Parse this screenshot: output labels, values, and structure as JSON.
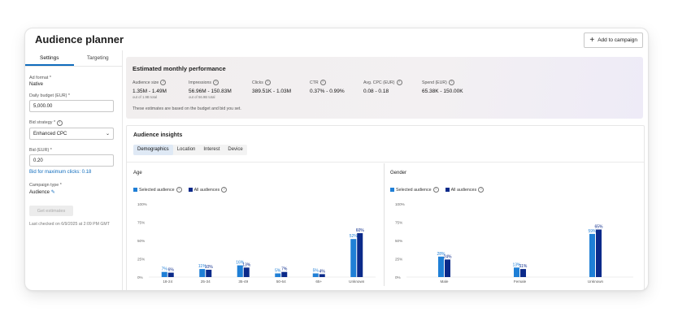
{
  "app": {
    "title": "Audience planner",
    "add_button": "Add to campaign"
  },
  "sidebar": {
    "tabs": [
      "Settings",
      "Targeting"
    ],
    "ad_format_label": "Ad format *",
    "ad_format_value": "Native",
    "daily_budget_label": "Daily budget (EUR) *",
    "daily_budget_value": "5,000.00",
    "bid_strategy_label": "Bid strategy *",
    "bid_strategy_value": "Enhanced CPC",
    "bid_label": "Bid (EUR) *",
    "bid_value": "0.20",
    "bid_link": "Bid for maximum clicks: 0.18",
    "campaign_type_label": "Campaign type *",
    "campaign_type_value": "Audience",
    "get_estimates": "Get estimates",
    "last_checked": "Last checked on 6/9/2025 at 2:09 PM GMT"
  },
  "performance": {
    "title": "Estimated monthly performance",
    "metrics": [
      {
        "label": "Audience size",
        "value": "1.35M - 1.49M",
        "sub": "out of 1.9B total"
      },
      {
        "label": "Impressions",
        "value": "56.96M - 150.83M",
        "sub": "out of 56.9B total"
      },
      {
        "label": "Clicks",
        "value": "389.51K - 1.03M",
        "sub": ""
      },
      {
        "label": "CTR",
        "value": "0.37% - 0.99%",
        "sub": ""
      },
      {
        "label": "Avg. CPC (EUR)",
        "value": "0.08 - 0.18",
        "sub": ""
      },
      {
        "label": "Spend (EUR)",
        "value": "65.38K - 150.00K",
        "sub": ""
      }
    ],
    "note": "These estimates are based on the budget and bid you set."
  },
  "insights": {
    "title": "Audience insights",
    "tabs": [
      "Demographics",
      "Location",
      "Interest",
      "Device"
    ]
  },
  "legend": {
    "selected": "Selected audience",
    "all": "All audiences"
  },
  "colors": {
    "selected": "#1f7fd6",
    "all": "#0b2a8a",
    "accent": "#0f6cbd"
  },
  "chart_data": [
    {
      "type": "bar",
      "title": "Age",
      "categories": [
        "18-24",
        "25-34",
        "35-49",
        "50-64",
        "65+",
        "Unknown"
      ],
      "ylim": [
        0,
        100
      ],
      "yticks": [
        "0%",
        "25%",
        "50%",
        "75%",
        "100%"
      ],
      "series": [
        {
          "name": "Selected audience",
          "values": [
            7,
            11,
            16,
            5,
            5,
            52
          ],
          "labels": [
            "7%",
            "11%",
            "16%",
            "5%",
            "5%",
            "52%"
          ]
        },
        {
          "name": "All audiences",
          "values": [
            6,
            10,
            13,
            7,
            4,
            60
          ],
          "labels": [
            "6%",
            "10%",
            "13%",
            "7%",
            "4%",
            "60%"
          ]
        }
      ]
    },
    {
      "type": "bar",
      "title": "Gender",
      "categories": [
        "Male",
        "Female",
        "Unknown"
      ],
      "ylim": [
        0,
        100
      ],
      "yticks": [
        "0%",
        "25%",
        "50%",
        "75%",
        "100%"
      ],
      "series": [
        {
          "name": "Selected audience",
          "values": [
            28,
            13,
            59
          ],
          "labels": [
            "28%",
            "13%",
            "59%"
          ]
        },
        {
          "name": "All audiences",
          "values": [
            24,
            11,
            65
          ],
          "labels": [
            "24%",
            "11%",
            "65%"
          ]
        }
      ]
    }
  ]
}
